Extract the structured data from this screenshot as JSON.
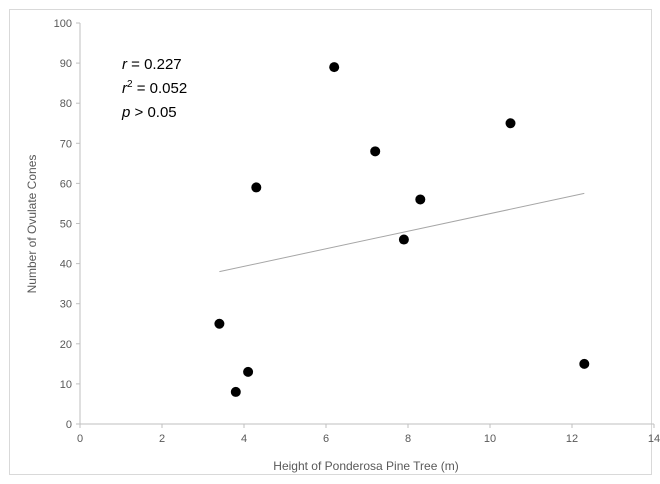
{
  "chart_data": {
    "type": "scatter",
    "title": "",
    "xlabel": "Height of Ponderosa Pine Tree (m)",
    "ylabel": "Number of Ovulate Cones",
    "xlim": [
      0,
      14
    ],
    "ylim": [
      0,
      100
    ],
    "x_ticks": [
      0,
      2,
      4,
      6,
      8,
      10,
      12,
      14
    ],
    "y_ticks": [
      0,
      10,
      20,
      30,
      40,
      50,
      60,
      70,
      80,
      90,
      100
    ],
    "grid": false,
    "legend": "none",
    "colors": {
      "points": "#000000",
      "trendline": "#a6a6a6",
      "axis": "#bfbfbf",
      "text": "#595959"
    },
    "series": [
      {
        "x": [
          3.4,
          3.8,
          4.1,
          4.3,
          6.2,
          7.2,
          7.9,
          8.3,
          10.5,
          12.3
        ],
        "y": [
          25,
          8,
          13,
          59,
          89,
          68,
          46,
          56,
          75,
          15
        ]
      }
    ],
    "trendline": {
      "x": [
        3.4,
        12.3
      ],
      "y": [
        38,
        57.5
      ]
    },
    "annotations": {
      "r_label": "r",
      "r_value": " =  0.227",
      "r2_label": "r",
      "r2_sup": "2",
      "r2_value": " = 0.052",
      "p_label": "p",
      "p_value": " > 0.05"
    }
  }
}
